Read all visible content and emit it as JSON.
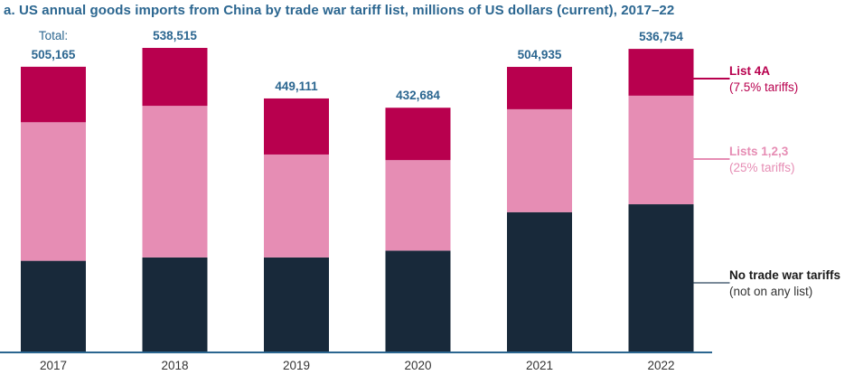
{
  "chart_data": {
    "type": "bar",
    "stacked": true,
    "title": "a. US annual goods imports from China by trade war tariff list, millions of US dollars (current), 2017–22",
    "xlabel": "",
    "ylabel": "",
    "ylim": [
      0,
      550000
    ],
    "categories": [
      "2017",
      "2018",
      "2019",
      "2020",
      "2021",
      "2022"
    ],
    "series": [
      {
        "name": "No trade war tariffs",
        "description": "(not on any list)",
        "color": "#18293a",
        "values": [
          162000,
          168000,
          168000,
          180000,
          248000,
          262000
        ]
      },
      {
        "name": "Lists 1,2,3",
        "description": "(25% tariffs)",
        "color": "#e68db4",
        "values": [
          245000,
          268000,
          182000,
          160000,
          182000,
          192000
        ]
      },
      {
        "name": "List 4A",
        "description": "(7.5% tariffs)",
        "color": "#b8004e",
        "values": [
          98165,
          102515,
          99111,
          92684,
          74935,
          82754
        ]
      }
    ],
    "totals": [
      "505,165",
      "538,515",
      "449,111",
      "432,684",
      "504,935",
      "536,754"
    ],
    "totals_caption": "Total:",
    "legend_position": "right",
    "grid": false
  }
}
